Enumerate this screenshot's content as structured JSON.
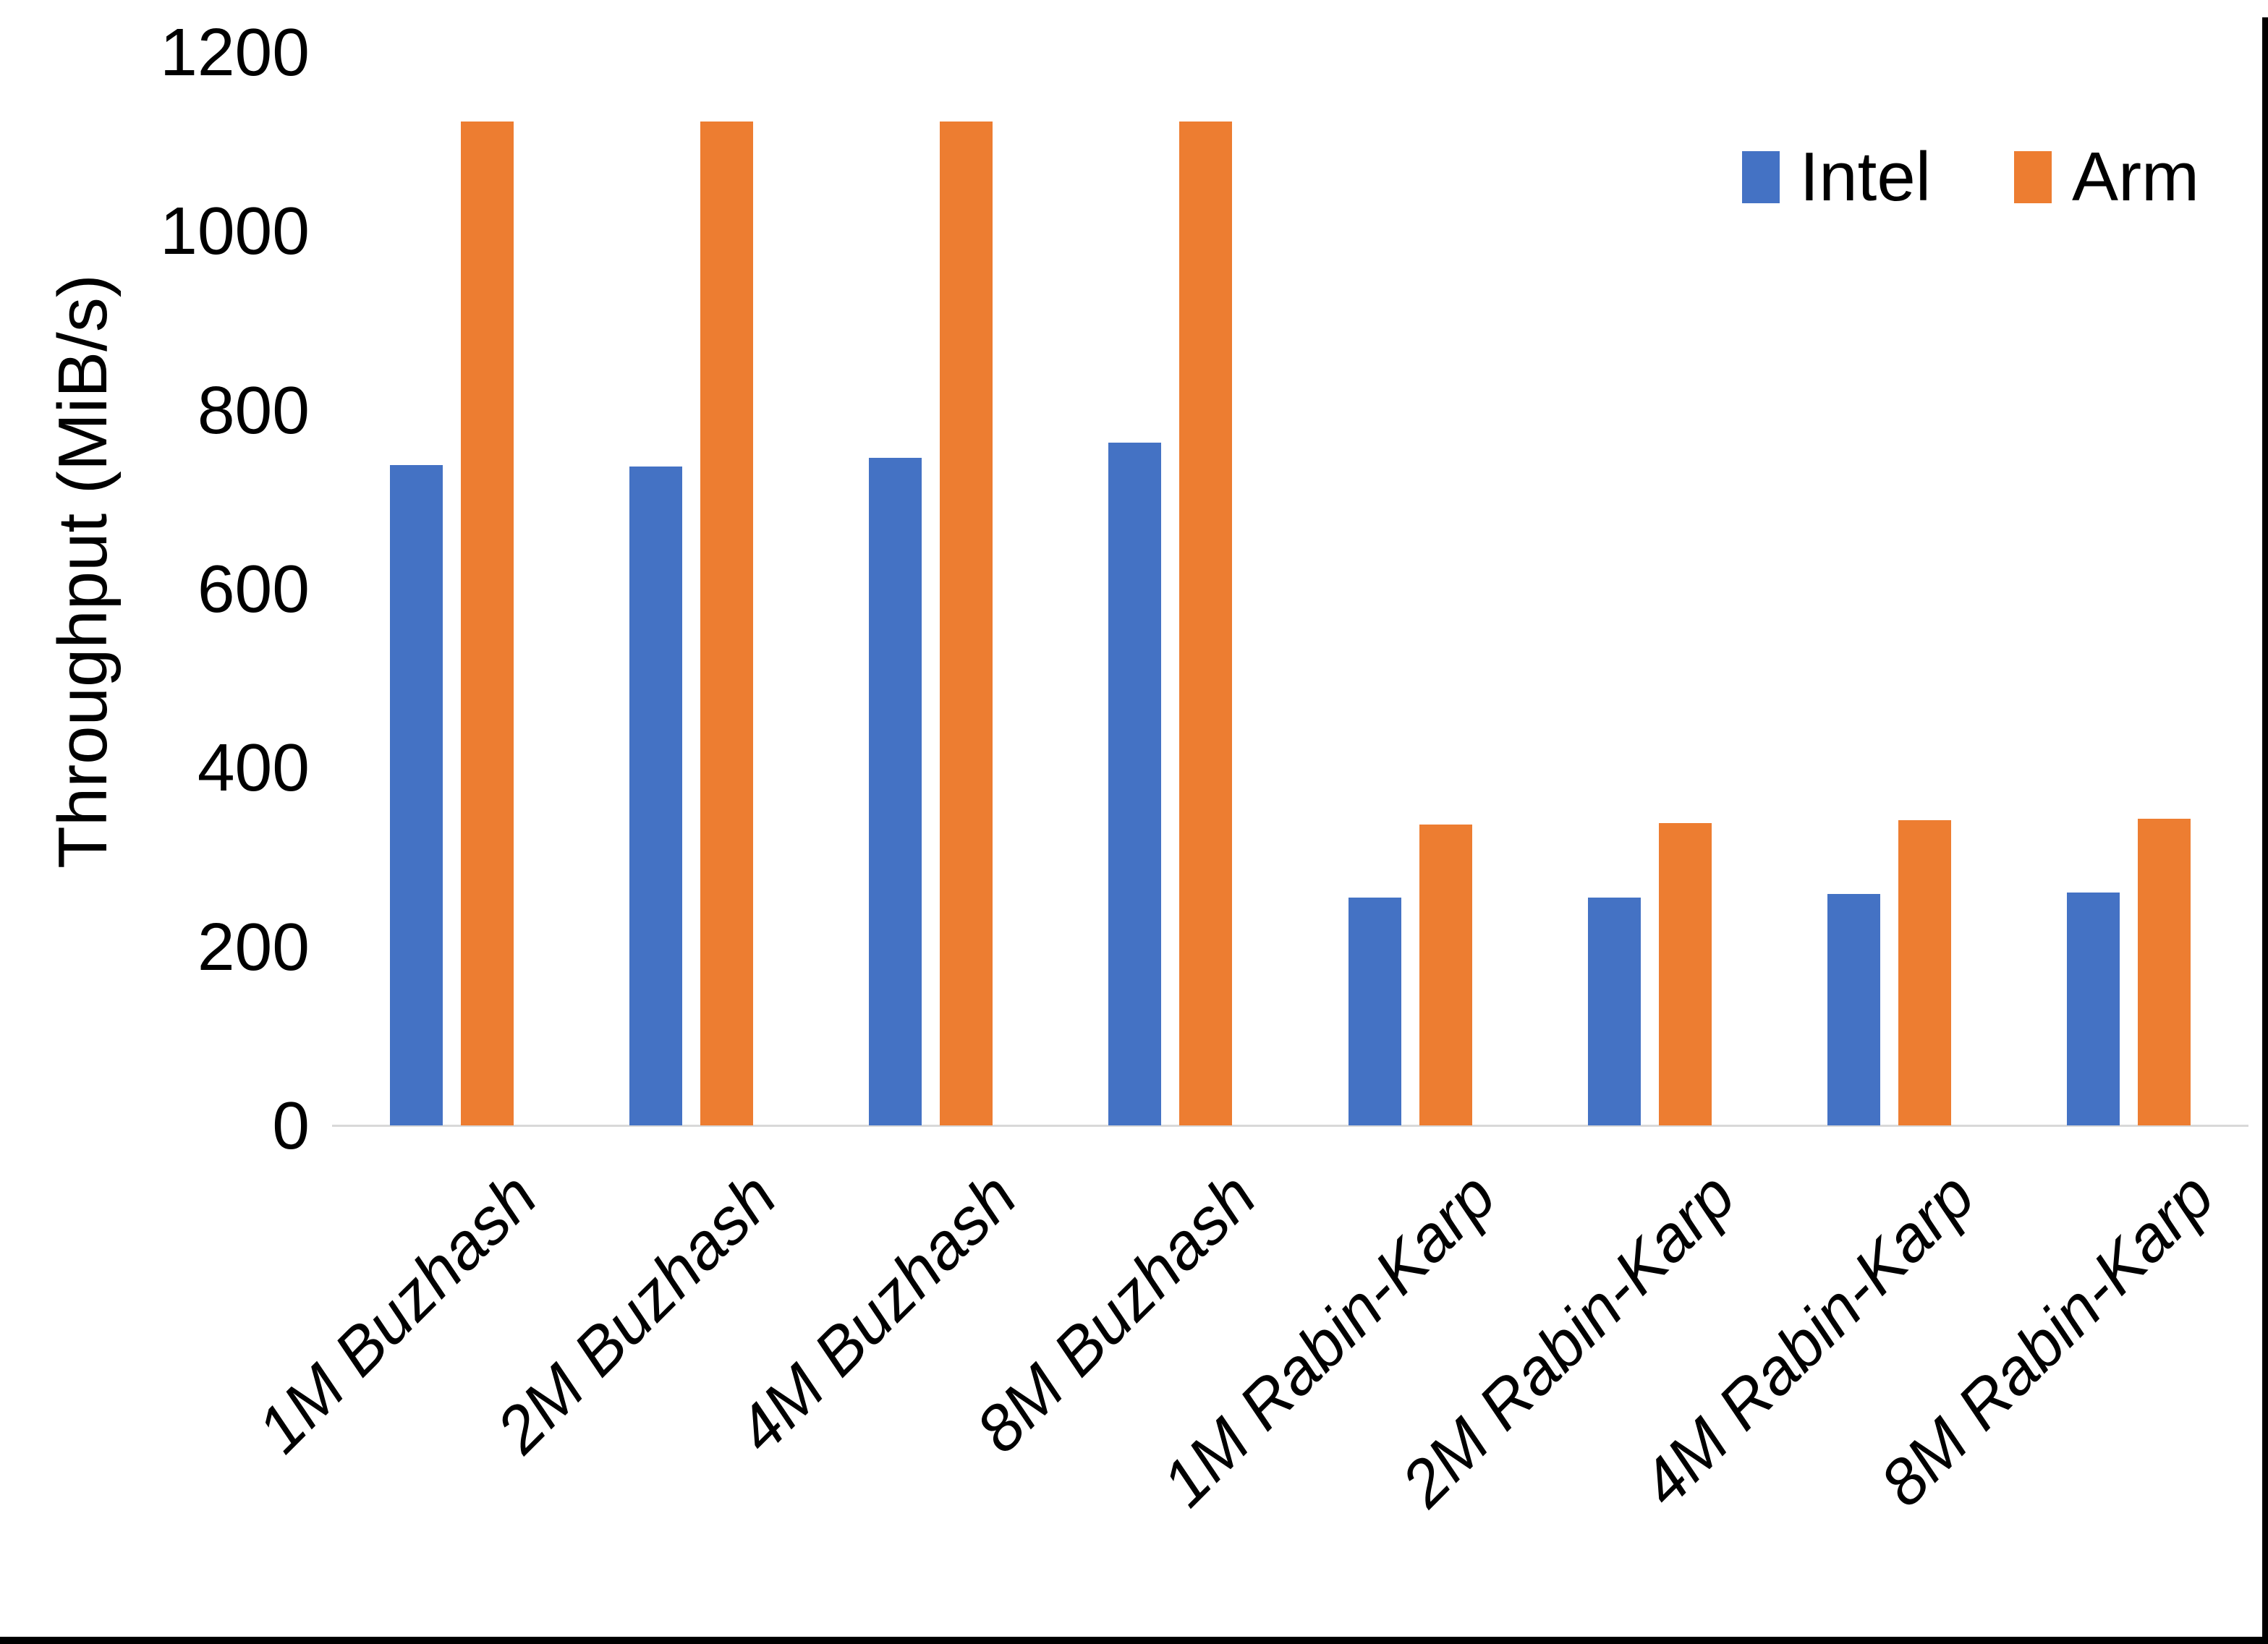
{
  "figure": {
    "background": "#FFFFFF",
    "frame_border_color": "#000000"
  },
  "chart_data": {
    "type": "bar",
    "title": "",
    "xlabel": "",
    "ylabel": "Throughput (MiB/s)",
    "categories": [
      "1M Buzhash",
      "2M Buzhash",
      "4M Buzhash",
      "8M Buzhash",
      "1M Rabin-Karp",
      "2M Rabin-Karp",
      "4M Rabin-Karp",
      "8M Rabin-Karp"
    ],
    "series": [
      {
        "name": "Intel",
        "color": "#4472C4",
        "values": [
          738,
          737,
          746,
          763,
          255,
          255,
          259,
          260
        ]
      },
      {
        "name": "Arm",
        "color": "#ED7D31",
        "values": [
          1122,
          1122,
          1122,
          1122,
          336,
          338,
          341,
          343
        ]
      }
    ],
    "ylim": [
      0,
      1200
    ],
    "yticks": [
      0,
      200,
      400,
      600,
      800,
      1000,
      1200
    ],
    "grid": false,
    "legend_position": "top-right",
    "axis_line_color": "#D9D9D9"
  }
}
